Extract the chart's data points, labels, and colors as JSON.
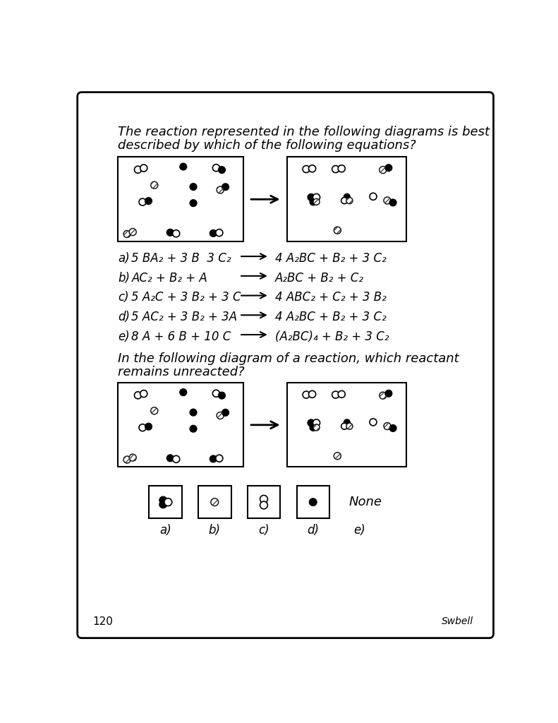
{
  "page_number": "120",
  "question1_line1": "The reaction represented in the following diagrams is best",
  "question1_line2": "described by which of the following equations?",
  "question2_line1": "In the following diagram of a reaction, which reactant",
  "question2_line2": "remains unreacted?",
  "options": [
    {
      "label": "a)",
      "left": "5 BA₂ + 3 B  3 C₂",
      "right": "4 A₂BC + B₂ + 3 C₂"
    },
    {
      "label": "b)",
      "left": "AC₂ + B₂ + A",
      "right": "A₂BC + B₂ + C₂"
    },
    {
      "label": "c)",
      "left": "5 A₂C + 3 B₂ + 3 C",
      "right": "4 ABC₂ + C₂ + 3 B₂"
    },
    {
      "label": "d)",
      "left": "5 AC₂ + 3 B₂ + 3A",
      "right": "4 A₂BC + B₂ + 3 C₂"
    },
    {
      "label": "e)",
      "left": "8 A + 6 B + 10 C",
      "right": "(A₂BC)₄ + B₂ + 3 C₂"
    }
  ],
  "answer_labels": [
    "a)",
    "b)",
    "c)",
    "d)",
    "e)"
  ],
  "none_label": "None",
  "signature": "Swbell",
  "bg_color": "#ffffff"
}
